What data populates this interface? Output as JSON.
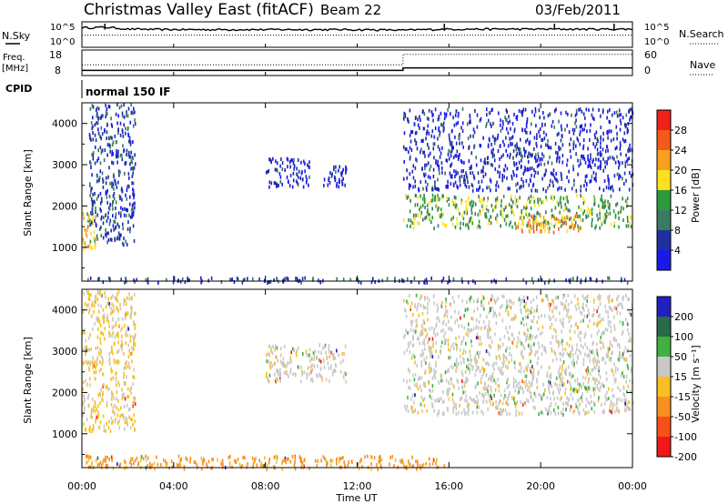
{
  "header": {
    "title": "Christmas Valley East (fitACF)",
    "beam": "Beam 22",
    "date": "03/Feb/2011"
  },
  "panels": {
    "noise": {
      "left_label": "N.Sky",
      "right_label": "N.Search",
      "left_ticks": [
        "10^5",
        "10^0"
      ],
      "right_ticks": [
        "10^5",
        "10^0"
      ]
    },
    "freq": {
      "left_label_1": "Freq.",
      "left_label_2": "[MHz]",
      "left_ticks": [
        "18",
        "8"
      ],
      "right_label": "Nave",
      "right_ticks": [
        "60",
        "0"
      ]
    },
    "cpid": {
      "label": "CPID",
      "value": "normal 150 IF"
    }
  },
  "power_panel": {
    "ylabel": "Slant Range [km]",
    "y_ticks": [
      "4000",
      "3000",
      "2000",
      "1000"
    ],
    "colorbar_label": "Power [dB]",
    "colorbar_ticks": [
      "28",
      "24",
      "20",
      "16",
      "12",
      "8",
      "4"
    ],
    "colors": [
      "#f0201c",
      "#f45a1c",
      "#f8a020",
      "#ffe020",
      "#2c9a3c",
      "#3a7a60",
      "#2030a0",
      "#1a1ae8"
    ]
  },
  "velocity_panel": {
    "ylabel": "Slant Range [km]",
    "y_ticks": [
      "4000",
      "3000",
      "2000",
      "1000"
    ],
    "colorbar_label": "Velocity [m s⁻¹]",
    "colorbar_ticks": [
      "200",
      "100",
      "50",
      "15",
      "-15",
      "-50",
      "-100",
      "-200"
    ],
    "colors": [
      "#2020c0",
      "#2a6a48",
      "#40b040",
      "#c8c8c8",
      "#f8c020",
      "#f89020",
      "#f85018",
      "#f01818"
    ]
  },
  "x_axis": {
    "label": "Time UT",
    "ticks": [
      "00:00",
      "04:00",
      "08:00",
      "12:00",
      "16:00",
      "20:00",
      "00:00"
    ]
  },
  "chart_data": [
    {
      "type": "line",
      "title": "N.Sky / N.Search",
      "x_range_hours": [
        0,
        24
      ],
      "series": [
        {
          "name": "N.Sky",
          "x": [
            0,
            1,
            2,
            4,
            8,
            12,
            14,
            16,
            20,
            24
          ],
          "y": [
            10000,
            12000,
            5000,
            4000,
            4000,
            4000,
            3000,
            5000,
            5000,
            5000
          ]
        },
        {
          "name": "N.Search",
          "x": [
            0,
            2,
            4,
            8,
            12,
            16,
            20,
            24
          ],
          "y": [
            300,
            300,
            300,
            300,
            300,
            300,
            300,
            300
          ]
        }
      ]
    },
    {
      "type": "line",
      "title": "Freq / Nave",
      "series": [
        {
          "name": "Freq",
          "x": [
            0,
            14,
            14,
            24
          ],
          "y": [
            10,
            10,
            11,
            11
          ]
        },
        {
          "name": "Nave",
          "x": [
            0,
            14,
            14,
            24
          ],
          "y": [
            25,
            25,
            50,
            50
          ]
        }
      ]
    },
    {
      "type": "heatmap",
      "title": "Power",
      "xlabel": "Time UT",
      "ylabel": "Slant Range [km]",
      "x_range_hours": [
        0,
        24
      ],
      "ylim": [
        180,
        4500
      ],
      "colorbar_range_dB": [
        0,
        32
      ],
      "regions": [
        {
          "t": [
            0.0,
            0.6
          ],
          "r": [
            1000,
            2000
          ],
          "level": 20
        },
        {
          "t": [
            0.3,
            2.3
          ],
          "r": [
            1100,
            4500
          ],
          "level": 6
        },
        {
          "t": [
            8.0,
            10.0
          ],
          "r": [
            2500,
            3200
          ],
          "level": 4
        },
        {
          "t": [
            10.5,
            11.5
          ],
          "r": [
            2500,
            3000
          ],
          "level": 4
        },
        {
          "t": [
            14.0,
            24.0
          ],
          "r": [
            1500,
            2300
          ],
          "level": 14
        },
        {
          "t": [
            18.8,
            21.8
          ],
          "r": [
            1400,
            1800
          ],
          "level": 22
        },
        {
          "t": [
            14.0,
            24.0
          ],
          "r": [
            2400,
            4400
          ],
          "level": 4
        },
        {
          "t": [
            0.0,
            24.0
          ],
          "r": [
            180,
            300
          ],
          "level": 6
        }
      ]
    },
    {
      "type": "heatmap",
      "title": "Velocity",
      "xlabel": "Time UT",
      "ylabel": "Slant Range [km]",
      "x_range_hours": [
        0,
        24
      ],
      "ylim": [
        180,
        4500
      ],
      "colorbar_range": [
        -250,
        250
      ],
      "regions": [
        {
          "t": [
            0.0,
            2.3
          ],
          "r": [
            1100,
            4500
          ],
          "v": -20
        },
        {
          "t": [
            8.0,
            11.5
          ],
          "r": [
            2300,
            3200
          ],
          "v": 0
        },
        {
          "t": [
            14.0,
            24.0
          ],
          "r": [
            1500,
            2500
          ],
          "v": 0
        },
        {
          "t": [
            14.0,
            24.0
          ],
          "r": [
            2500,
            4400
          ],
          "v": 0
        },
        {
          "t": [
            0.0,
            16.0
          ],
          "r": [
            180,
            500
          ],
          "v": -60
        }
      ]
    }
  ]
}
